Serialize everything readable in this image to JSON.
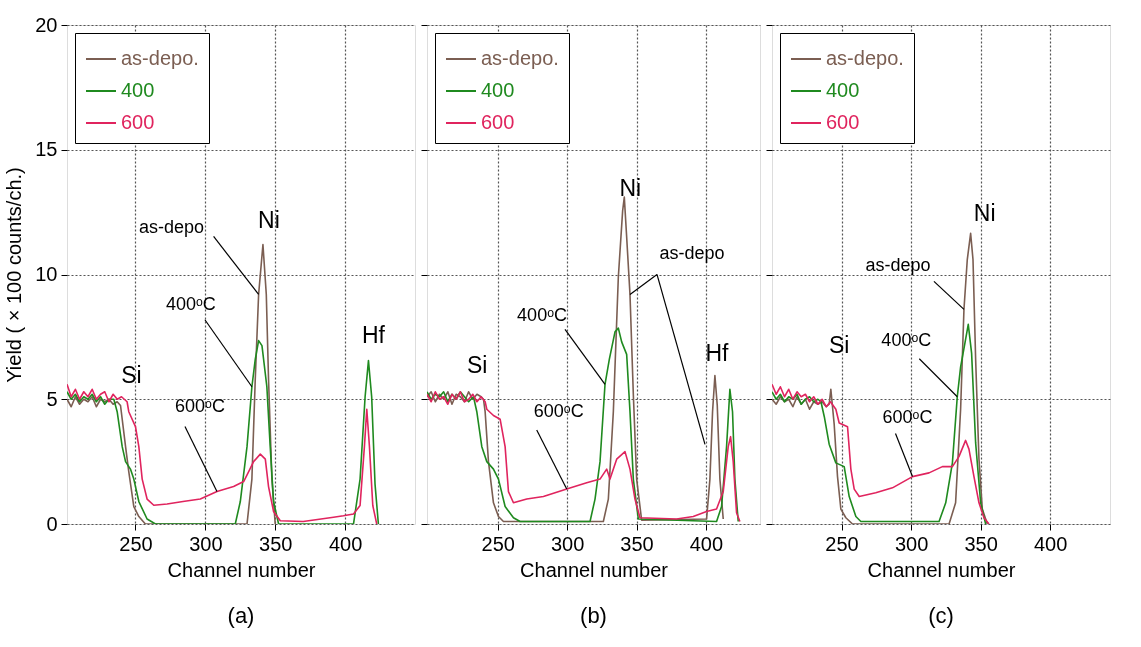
{
  "chart_data": [
    {
      "type": "line",
      "title": "(a)",
      "xlabel": "Channel number",
      "ylabel": "Yield ( × 100 counts/ch.)",
      "xlim": [
        201,
        450
      ],
      "xticks": [
        250,
        300,
        350,
        400
      ],
      "ylim": [
        0,
        20
      ],
      "yticks": [
        0,
        5,
        10,
        15,
        20
      ],
      "grid": true,
      "legend": "top left",
      "series": [
        {
          "name": "as-depo.",
          "color": "#7b5e52",
          "x": [
            201,
            204,
            207,
            210,
            213,
            216,
            219,
            222,
            225,
            228,
            231,
            234,
            236.9,
            239.3,
            242.9,
            245.2,
            248.8,
            252.4,
            257.1,
            329.8,
            333.3,
            335.7,
            338.1,
            341.2,
            343.6,
            345.2,
            347.6,
            350
          ],
          "values": [
            5.0,
            4.7,
            5.1,
            4.8,
            5.0,
            4.9,
            5.1,
            4.7,
            5.0,
            4.9,
            5.0,
            4.8,
            4.9,
            4.75,
            3.1,
            2.1,
            0.7,
            0.3,
            0,
            0,
            1.8,
            5.8,
            9.2,
            11.2,
            9.2,
            5.8,
            1.8,
            0
          ]
        },
        {
          "name": "400",
          "color": "#1f8a1f",
          "x": [
            201,
            204,
            207,
            210,
            213,
            216,
            219,
            222,
            225,
            228,
            231,
            234.5,
            236.9,
            240.5,
            242.9,
            246.4,
            248.8,
            252.4,
            258.3,
            264.3,
            321.4,
            325,
            329.8,
            333.3,
            335.7,
            338.1,
            340.5,
            344,
            346.4,
            348.8,
            352.4,
            406,
            410.7,
            414.3,
            416.7,
            419,
            421.4,
            423.8
          ],
          "values": [
            5.3,
            5.0,
            5.2,
            4.9,
            5.1,
            5.0,
            5.2,
            4.9,
            5.1,
            4.8,
            5.0,
            5.0,
            4.5,
            3.1,
            2.5,
            2.2,
            1.8,
            0.9,
            0.2,
            0,
            0,
            0.9,
            3.1,
            5.5,
            6.6,
            7.35,
            7.15,
            5.5,
            3.1,
            0.9,
            0,
            0,
            1.8,
            5.1,
            6.55,
            5.1,
            1.6,
            0
          ]
        },
        {
          "name": "600",
          "color": "#e0245e",
          "x": [
            201,
            204,
            207,
            210,
            213,
            216,
            219,
            222,
            225,
            228,
            231,
            234,
            237,
            240,
            244,
            245.2,
            250,
            252.4,
            254.8,
            258.3,
            263.1,
            272.6,
            284,
            296.4,
            308.3,
            320.2,
            327.4,
            331,
            334.5,
            339.3,
            342.9,
            345.2,
            348.8,
            353.6,
            370,
            391.7,
            398.8,
            406,
            410.7,
            413.8,
            415.5,
            417.4,
            419.8,
            422.6
          ],
          "values": [
            5.6,
            5.1,
            5.4,
            5.0,
            5.3,
            5.1,
            5.4,
            5.0,
            5.2,
            5.3,
            4.9,
            5.2,
            5.0,
            5.1,
            4.9,
            4.5,
            3.9,
            3.1,
            1.8,
            1.0,
            0.75,
            0.8,
            0.9,
            1.0,
            1.3,
            1.5,
            1.7,
            2.1,
            2.5,
            2.8,
            2.6,
            1.5,
            0.5,
            0.13,
            0.1,
            0.27,
            0.33,
            0.4,
            0.74,
            3.1,
            4.6,
            3.1,
            0.74,
            0
          ]
        }
      ],
      "annotations": [
        {
          "text": "Si",
          "x": 250,
          "y": 3.9
        },
        {
          "text": "Ni",
          "x": 341.2,
          "y": 11.2
        },
        {
          "text": "Hf",
          "x": 416.7,
          "y": 6.55
        },
        {
          "text": "as-depo",
          "x": 338.1,
          "y": 9.2
        },
        {
          "text": "400ᵒC",
          "x": 333.3,
          "y": 5.5
        },
        {
          "text": "600ᵒC",
          "x": 308.3,
          "y": 1.3
        }
      ]
    },
    {
      "type": "line",
      "title": "(b)",
      "xlabel": "Channel number",
      "xlim": [
        199,
        439
      ],
      "xticks": [
        250,
        300,
        350,
        400
      ],
      "ylim": [
        0,
        20
      ],
      "yticks": [
        0,
        5,
        10,
        15,
        20
      ],
      "grid": true,
      "legend": "top left",
      "tick_labels": "x",
      "series": [
        {
          "name": "as-depo.",
          "color": "#7b5e52",
          "x": [
            199,
            202,
            205,
            208,
            211,
            214,
            217,
            220,
            223,
            226,
            229,
            232,
            235,
            238,
            239.7,
            240.9,
            243.3,
            246.9,
            250.5,
            254.1,
            326.1,
            329.7,
            333.3,
            336.9,
            340,
            341.2,
            342.9,
            345.3,
            347.7,
            350.1,
            353.7,
            400.5,
            402.9,
            404.8,
            406.5,
            408.2,
            410.1,
            412.5
          ],
          "values": [
            5.1,
            5.3,
            4.9,
            5.2,
            5.0,
            5.3,
            4.8,
            5.2,
            5.1,
            4.9,
            5.3,
            5.0,
            5.2,
            5.1,
            5.0,
            4.5,
            2.5,
            0.85,
            0.3,
            0.1,
            0.1,
            1.0,
            4.5,
            9.9,
            12.55,
            13.1,
            11.5,
            9.2,
            5.2,
            1.8,
            0.15,
            0.2,
            1.8,
            4.5,
            5.95,
            4.75,
            1.8,
            0.2
          ]
        },
        {
          "name": "400",
          "color": "#1f8a1f",
          "x": [
            199,
            202,
            205,
            208,
            211,
            214,
            217,
            220,
            223,
            226,
            229,
            232.5,
            234.9,
            238.5,
            242.1,
            246.9,
            250.5,
            255.3,
            261.3,
            266.1,
            316.5,
            320.1,
            323.7,
            327.3,
            330.4,
            334.5,
            336.9,
            339.3,
            342.9,
            345.3,
            347.7,
            351.3,
            407.7,
            411.3,
            414.9,
            417.3,
            419.2,
            420.9,
            423.3
          ],
          "values": [
            5.3,
            5.0,
            5.2,
            5.1,
            5.3,
            4.9,
            5.2,
            5.0,
            5.3,
            5.1,
            4.9,
            5.1,
            4.5,
            3.1,
            2.5,
            2.2,
            1.8,
            0.7,
            0.25,
            0.1,
            0.1,
            1.0,
            2.5,
            5.6,
            6.6,
            7.7,
            7.85,
            7.3,
            6.8,
            4.5,
            1.8,
            0.2,
            0.1,
            0.7,
            3.1,
            5.4,
            4.5,
            1.8,
            0.1
          ]
        },
        {
          "name": "600",
          "color": "#e0245e",
          "x": [
            199,
            202,
            205,
            208,
            211,
            214,
            217,
            220,
            223,
            226,
            229,
            232,
            235,
            238,
            240.9,
            242.1,
            246.9,
            251.7,
            255.3,
            257.7,
            261.3,
            270.9,
            282.9,
            299.7,
            314.1,
            323.7,
            328.5,
            330.9,
            335.7,
            341.7,
            345.3,
            348.9,
            352.5,
            378.9,
            390.9,
            400.5,
            407.7,
            412.5,
            416.1,
            417.8,
            419.7,
            422.1,
            424.5
          ],
          "values": [
            5.2,
            4.9,
            5.3,
            5.0,
            5.1,
            4.8,
            5.2,
            5.0,
            5.3,
            4.9,
            5.0,
            5.2,
            4.9,
            5.1,
            4.9,
            4.6,
            4.35,
            4.2,
            3.1,
            1.3,
            0.85,
            1.0,
            1.1,
            1.4,
            1.65,
            1.8,
            2.2,
            1.8,
            2.6,
            2.9,
            2.2,
            1.0,
            0.25,
            0.2,
            0.3,
            0.5,
            0.6,
            1.3,
            3.1,
            3.5,
            2.5,
            0.45,
            0.1
          ]
        }
      ],
      "annotations": [
        {
          "text": "Si",
          "x": 251.7,
          "y": 4.2
        },
        {
          "text": "Ni",
          "x": 341.2,
          "y": 13.1
        },
        {
          "text": "Hf",
          "x": 406.5,
          "y": 5.95
        },
        {
          "text": "as-depo",
          "x": 345.3,
          "y": 9.2
        },
        {
          "text": "400ᵒC",
          "x": 327.3,
          "y": 5.6
        },
        {
          "text": "600ᵒC",
          "x": 299.7,
          "y": 1.4
        }
      ]
    },
    {
      "type": "line",
      "title": "(c)",
      "xlabel": "Channel number",
      "xlim": [
        200,
        443
      ],
      "xticks": [
        250,
        300,
        350,
        400
      ],
      "ylim": [
        0,
        20
      ],
      "yticks": [
        0,
        5,
        10,
        15,
        20
      ],
      "grid": true,
      "legend": "top left",
      "tick_labels": "x",
      "series": [
        {
          "name": "as-depo.",
          "color": "#7b5e52",
          "x": [
            200,
            203,
            206,
            209,
            212,
            215,
            218,
            221,
            224,
            227,
            230,
            233,
            236,
            239,
            241.1,
            242.3,
            244.7,
            247.1,
            249.5,
            253.1,
            257.9,
            327.3,
            332,
            335.6,
            338,
            340.4,
            342.8,
            344.5,
            346.4,
            348.8,
            351.2,
            354.8
          ],
          "values": [
            5.0,
            4.8,
            5.1,
            4.9,
            5.0,
            4.7,
            5.1,
            4.8,
            5.0,
            4.6,
            4.9,
            4.8,
            4.9,
            4.7,
            4.8,
            5.4,
            4.0,
            1.9,
            0.6,
            0.25,
            0,
            0,
            0.85,
            4.6,
            8.6,
            10.6,
            11.65,
            10.6,
            6.6,
            2.6,
            0.6,
            0
          ]
        },
        {
          "name": "400",
          "color": "#1f8a1f",
          "x": [
            200,
            203,
            206,
            209,
            212,
            215,
            218,
            221,
            224,
            227,
            230,
            233,
            235.2,
            237.6,
            241.1,
            245.9,
            251.9,
            255.5,
            260.3,
            263.9,
            320.1,
            324.9,
            329.7,
            333.2,
            335.6,
            338.7,
            341.1,
            343.5,
            346.4,
            350,
            353.6
          ],
          "values": [
            5.3,
            5.0,
            5.2,
            4.9,
            5.1,
            5.0,
            5.2,
            4.8,
            5.0,
            5.1,
            4.9,
            5.0,
            4.9,
            4.3,
            3.2,
            2.45,
            2.3,
            1.1,
            0.3,
            0.1,
            0.1,
            0.85,
            2.45,
            5.1,
            6.3,
            7.25,
            8.0,
            6.85,
            3.25,
            0.85,
            0
          ]
        },
        {
          "name": "600",
          "color": "#e0245e",
          "x": [
            200,
            203,
            206,
            209,
            212,
            215,
            218,
            221,
            224,
            227,
            230,
            233,
            236,
            239,
            242,
            245.9,
            248.3,
            254.3,
            256.7,
            259.1,
            262.7,
            274.6,
            286.6,
            301,
            312.9,
            322.5,
            329.7,
            334.4,
            339.2,
            341.6,
            345.2,
            348.8,
            352.4,
            356
          ],
          "values": [
            5.6,
            5.2,
            5.5,
            5.1,
            5.4,
            5.0,
            5.3,
            5.1,
            5.2,
            4.9,
            5.1,
            4.8,
            5.0,
            4.7,
            4.9,
            4.6,
            4.05,
            3.9,
            2.2,
            1.4,
            1.1,
            1.25,
            1.45,
            1.9,
            2.05,
            2.3,
            2.3,
            2.7,
            3.35,
            3.0,
            1.9,
            0.85,
            0.25,
            0
          ]
        }
      ],
      "annotations": [
        {
          "text": "Si",
          "x": 248.3,
          "y": 4.05
        },
        {
          "text": "Ni",
          "x": 342.8,
          "y": 11.65
        },
        {
          "text": "as-depo",
          "x": 338,
          "y": 8.6
        },
        {
          "text": "400ᵒC",
          "x": 333.2,
          "y": 5.1
        },
        {
          "text": "600ᵒC",
          "x": 301,
          "y": 1.9
        }
      ]
    }
  ]
}
